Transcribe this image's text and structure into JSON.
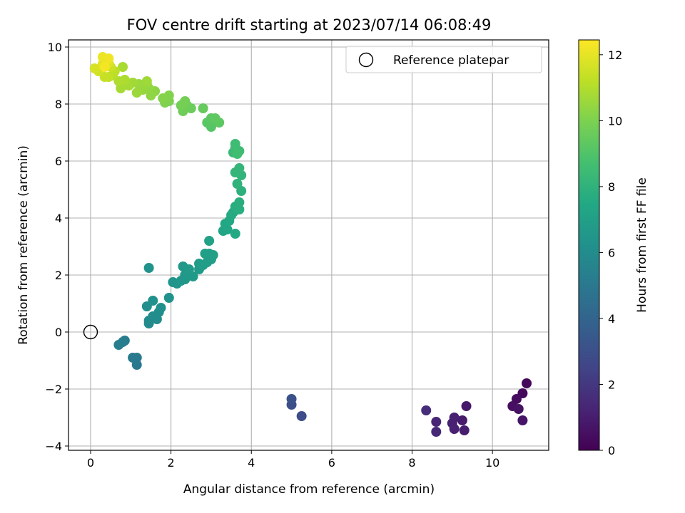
{
  "chart_data": {
    "type": "scatter",
    "title": "FOV centre drift starting at 2023/07/14 06:08:49",
    "xlabel": "Angular distance from reference (arcmin)",
    "ylabel": "Rotation from reference (arcmin)",
    "xlim": [
      -0.55,
      11.4
    ],
    "ylim": [
      -4.15,
      10.25
    ],
    "xticks": [
      0,
      2,
      4,
      6,
      8,
      10
    ],
    "yticks": [
      -4,
      -2,
      0,
      2,
      4,
      6,
      8,
      10
    ],
    "grid": true,
    "legend": {
      "position": "top-right",
      "entries": [
        "Reference platepar"
      ]
    },
    "colorbar": {
      "label": "Hours from first FF file",
      "min": 0,
      "max": 12.45,
      "ticks": [
        0,
        2,
        4,
        6,
        8,
        10,
        12
      ],
      "colormap": "viridis"
    },
    "reference_point": {
      "x": 0,
      "y": 0,
      "label": "Reference platepar"
    },
    "series": [
      {
        "values": [
          {
            "x": 10.85,
            "y": -1.8,
            "t": 0.2
          },
          {
            "x": 10.75,
            "y": -2.15,
            "t": 0.3
          },
          {
            "x": 10.6,
            "y": -2.35,
            "t": 0.4
          },
          {
            "x": 10.5,
            "y": -2.6,
            "t": 0.5
          },
          {
            "x": 10.65,
            "y": -2.7,
            "t": 0.6
          },
          {
            "x": 10.75,
            "y": -3.1,
            "t": 0.7
          },
          {
            "x": 9.35,
            "y": -2.6,
            "t": 0.8
          },
          {
            "x": 9.25,
            "y": -3.1,
            "t": 0.9
          },
          {
            "x": 9.3,
            "y": -3.45,
            "t": 1.0
          },
          {
            "x": 9.05,
            "y": -3.0,
            "t": 1.05
          },
          {
            "x": 9.0,
            "y": -3.2,
            "t": 1.1
          },
          {
            "x": 9.05,
            "y": -3.4,
            "t": 1.15
          },
          {
            "x": 8.6,
            "y": -3.15,
            "t": 1.3
          },
          {
            "x": 8.6,
            "y": -3.5,
            "t": 1.4
          },
          {
            "x": 8.35,
            "y": -2.75,
            "t": 1.6
          },
          {
            "x": 5.25,
            "y": -2.95,
            "t": 2.9
          },
          {
            "x": 5.0,
            "y": -2.55,
            "t": 3.0
          },
          {
            "x": 5.0,
            "y": -2.35,
            "t": 3.1
          },
          {
            "x": 1.15,
            "y": -1.15,
            "t": 5.0
          },
          {
            "x": 1.15,
            "y": -0.9,
            "t": 5.05
          },
          {
            "x": 1.05,
            "y": -0.9,
            "t": 5.1
          },
          {
            "x": 0.85,
            "y": -0.3,
            "t": 5.2
          },
          {
            "x": 0.8,
            "y": -0.35,
            "t": 5.25
          },
          {
            "x": 0.7,
            "y": -0.45,
            "t": 5.3
          },
          {
            "x": 1.45,
            "y": 0.3,
            "t": 5.9
          },
          {
            "x": 1.45,
            "y": 0.4,
            "t": 5.95
          },
          {
            "x": 1.55,
            "y": 0.55,
            "t": 6.0
          },
          {
            "x": 1.65,
            "y": 0.45,
            "t": 6.05
          },
          {
            "x": 1.7,
            "y": 0.7,
            "t": 6.1
          },
          {
            "x": 1.4,
            "y": 0.9,
            "t": 6.15
          },
          {
            "x": 1.75,
            "y": 0.85,
            "t": 6.2
          },
          {
            "x": 1.55,
            "y": 1.1,
            "t": 6.25
          },
          {
            "x": 1.95,
            "y": 1.2,
            "t": 6.3
          },
          {
            "x": 1.45,
            "y": 2.25,
            "t": 6.3
          },
          {
            "x": 2.05,
            "y": 1.75,
            "t": 6.4
          },
          {
            "x": 2.15,
            "y": 1.7,
            "t": 6.45
          },
          {
            "x": 2.25,
            "y": 1.8,
            "t": 6.5
          },
          {
            "x": 2.35,
            "y": 1.85,
            "t": 6.55
          },
          {
            "x": 2.3,
            "y": 2.3,
            "t": 6.6
          },
          {
            "x": 2.35,
            "y": 2.0,
            "t": 6.6
          },
          {
            "x": 2.55,
            "y": 1.95,
            "t": 6.65
          },
          {
            "x": 2.45,
            "y": 2.2,
            "t": 6.7
          },
          {
            "x": 2.7,
            "y": 2.2,
            "t": 6.75
          },
          {
            "x": 2.7,
            "y": 2.4,
            "t": 6.8
          },
          {
            "x": 2.8,
            "y": 2.35,
            "t": 6.85
          },
          {
            "x": 2.9,
            "y": 2.45,
            "t": 6.9
          },
          {
            "x": 3.0,
            "y": 2.55,
            "t": 6.95
          },
          {
            "x": 2.95,
            "y": 2.75,
            "t": 7.0
          },
          {
            "x": 2.85,
            "y": 2.75,
            "t": 7.0
          },
          {
            "x": 3.05,
            "y": 2.7,
            "t": 7.05
          },
          {
            "x": 2.95,
            "y": 3.2,
            "t": 7.1
          },
          {
            "x": 3.3,
            "y": 3.55,
            "t": 7.3
          },
          {
            "x": 3.4,
            "y": 3.6,
            "t": 7.35
          },
          {
            "x": 3.35,
            "y": 3.8,
            "t": 7.4
          },
          {
            "x": 3.45,
            "y": 3.9,
            "t": 7.45
          },
          {
            "x": 3.6,
            "y": 3.45,
            "t": 7.5
          },
          {
            "x": 3.5,
            "y": 4.1,
            "t": 7.55
          },
          {
            "x": 3.55,
            "y": 4.2,
            "t": 7.6
          },
          {
            "x": 3.6,
            "y": 4.4,
            "t": 7.7
          },
          {
            "x": 3.7,
            "y": 4.3,
            "t": 7.75
          },
          {
            "x": 3.7,
            "y": 4.55,
            "t": 7.8
          },
          {
            "x": 3.75,
            "y": 4.95,
            "t": 7.9
          },
          {
            "x": 3.65,
            "y": 5.2,
            "t": 8.0
          },
          {
            "x": 3.75,
            "y": 5.5,
            "t": 8.1
          },
          {
            "x": 3.6,
            "y": 5.6,
            "t": 8.15
          },
          {
            "x": 3.7,
            "y": 5.75,
            "t": 8.2
          },
          {
            "x": 3.55,
            "y": 6.3,
            "t": 8.4
          },
          {
            "x": 3.6,
            "y": 6.45,
            "t": 8.45
          },
          {
            "x": 3.7,
            "y": 6.35,
            "t": 8.5
          },
          {
            "x": 3.6,
            "y": 6.6,
            "t": 8.55
          },
          {
            "x": 3.65,
            "y": 6.25,
            "t": 8.6
          },
          {
            "x": 3.0,
            "y": 7.2,
            "t": 9.1
          },
          {
            "x": 2.9,
            "y": 7.35,
            "t": 9.2
          },
          {
            "x": 3.0,
            "y": 7.5,
            "t": 9.25
          },
          {
            "x": 3.2,
            "y": 7.35,
            "t": 9.3
          },
          {
            "x": 3.1,
            "y": 7.5,
            "t": 9.35
          },
          {
            "x": 2.8,
            "y": 7.85,
            "t": 9.5
          },
          {
            "x": 2.5,
            "y": 7.85,
            "t": 9.6
          },
          {
            "x": 2.4,
            "y": 7.95,
            "t": 9.65
          },
          {
            "x": 2.3,
            "y": 7.75,
            "t": 9.7
          },
          {
            "x": 2.25,
            "y": 7.95,
            "t": 9.75
          },
          {
            "x": 2.35,
            "y": 8.1,
            "t": 9.8
          },
          {
            "x": 2.3,
            "y": 8.0,
            "t": 9.85
          },
          {
            "x": 1.95,
            "y": 8.1,
            "t": 10.0
          },
          {
            "x": 1.85,
            "y": 8.05,
            "t": 10.05
          },
          {
            "x": 1.95,
            "y": 8.3,
            "t": 10.1
          },
          {
            "x": 1.8,
            "y": 8.2,
            "t": 10.15
          },
          {
            "x": 1.6,
            "y": 8.45,
            "t": 10.3
          },
          {
            "x": 1.5,
            "y": 8.3,
            "t": 10.35
          },
          {
            "x": 1.45,
            "y": 8.55,
            "t": 10.4
          },
          {
            "x": 1.4,
            "y": 8.7,
            "t": 10.45
          },
          {
            "x": 1.3,
            "y": 8.5,
            "t": 10.5
          },
          {
            "x": 1.2,
            "y": 8.7,
            "t": 10.55
          },
          {
            "x": 1.15,
            "y": 8.4,
            "t": 10.6
          },
          {
            "x": 1.4,
            "y": 8.8,
            "t": 10.65
          },
          {
            "x": 1.05,
            "y": 8.75,
            "t": 10.7
          },
          {
            "x": 0.95,
            "y": 8.65,
            "t": 10.75
          },
          {
            "x": 0.75,
            "y": 8.55,
            "t": 10.8
          },
          {
            "x": 0.8,
            "y": 9.3,
            "t": 10.85
          },
          {
            "x": 0.85,
            "y": 8.85,
            "t": 10.9
          },
          {
            "x": 0.7,
            "y": 8.8,
            "t": 10.95
          },
          {
            "x": 0.55,
            "y": 9.0,
            "t": 11.1
          },
          {
            "x": 0.6,
            "y": 9.15,
            "t": 11.2
          },
          {
            "x": 0.45,
            "y": 8.95,
            "t": 11.3
          },
          {
            "x": 0.35,
            "y": 8.95,
            "t": 11.4
          },
          {
            "x": 0.5,
            "y": 9.3,
            "t": 11.5
          },
          {
            "x": 0.2,
            "y": 9.15,
            "t": 11.6
          },
          {
            "x": 0.1,
            "y": 9.25,
            "t": 11.7
          },
          {
            "x": 0.45,
            "y": 9.45,
            "t": 11.8
          },
          {
            "x": 0.3,
            "y": 9.4,
            "t": 11.9
          },
          {
            "x": 0.4,
            "y": 9.55,
            "t": 12.0
          },
          {
            "x": 0.3,
            "y": 9.65,
            "t": 12.1
          },
          {
            "x": 0.45,
            "y": 9.6,
            "t": 12.2
          },
          {
            "x": 0.35,
            "y": 9.3,
            "t": 12.3
          }
        ]
      }
    ]
  }
}
